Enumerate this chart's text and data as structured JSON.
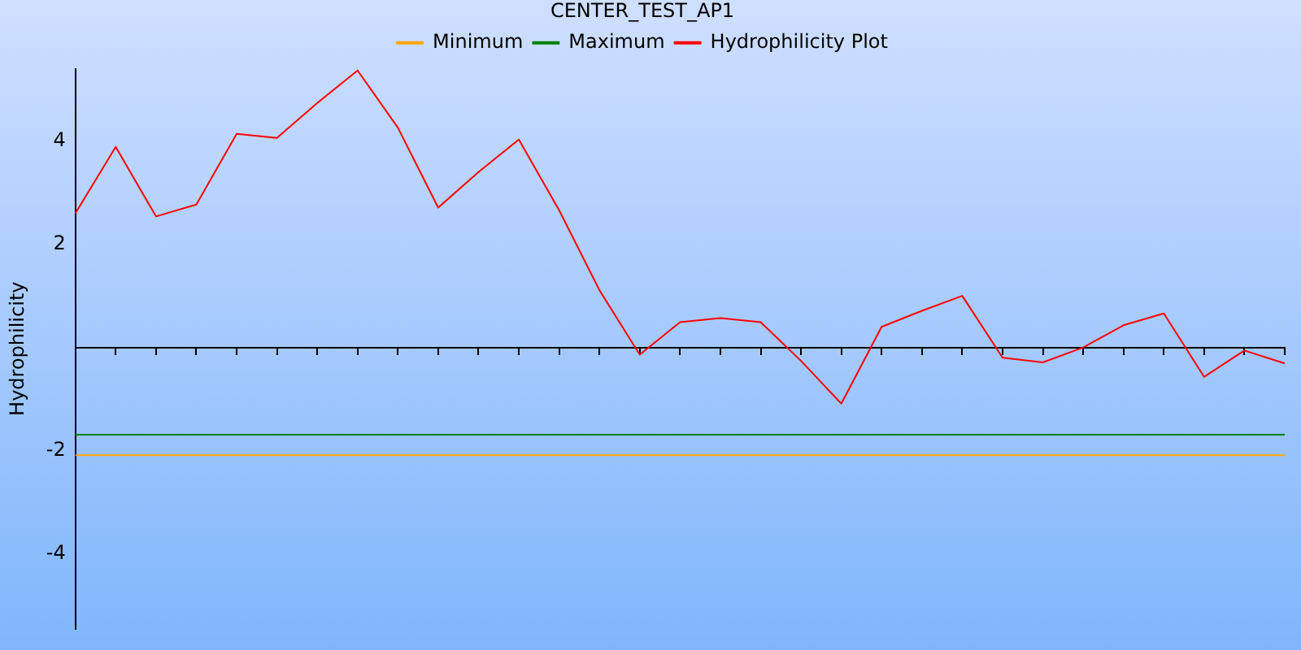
{
  "chart_data": {
    "type": "line",
    "title": "CENTER_TEST_AP1",
    "ylabel": "Hydrophilicity",
    "categories": [
      null,
      null,
      null,
      null,
      null,
      null,
      null,
      null,
      null,
      null,
      null,
      null,
      null,
      null,
      null,
      null,
      null,
      null,
      null,
      null,
      null,
      null,
      null,
      null,
      null,
      null,
      null,
      null,
      null,
      null,
      null
    ],
    "series": [
      {
        "name": "Minimum",
        "color": "#ffa500",
        "values": [
          -2.09,
          -2.09,
          -2.09,
          -2.09,
          -2.09,
          -2.09,
          -2.09,
          -2.09,
          -2.09,
          -2.09,
          -2.09,
          -2.09,
          -2.09,
          -2.09,
          -2.09,
          -2.09,
          -2.09,
          -2.09,
          -2.09,
          -2.09,
          -2.09,
          -2.09,
          -2.09,
          -2.09,
          -2.09,
          -2.09,
          -2.09,
          -2.09,
          -2.09,
          -2.09,
          -2.09
        ]
      },
      {
        "name": "Maximum",
        "color": "#008000",
        "values": [
          -1.69,
          -1.69,
          -1.69,
          -1.69,
          -1.69,
          -1.69,
          -1.69,
          -1.69,
          -1.69,
          -1.69,
          -1.69,
          -1.69,
          -1.69,
          -1.69,
          -1.69,
          -1.69,
          -1.69,
          -1.69,
          -1.69,
          -1.69,
          -1.69,
          -1.69,
          -1.69,
          -1.69,
          -1.69,
          -1.69,
          -1.69,
          -1.69,
          -1.69,
          -1.69,
          -1.69
        ]
      },
      {
        "name": "Hydrophilicity Plot",
        "color": "#ff0000",
        "values": [
          2.6,
          3.89,
          2.54,
          2.77,
          4.14,
          4.06,
          4.74,
          5.37,
          4.26,
          2.71,
          3.4,
          4.03,
          2.66,
          1.11,
          -0.14,
          0.49,
          0.57,
          0.49,
          -0.26,
          -1.09,
          0.4,
          0.71,
          1.0,
          -0.2,
          -0.29,
          0.0,
          0.43,
          0.66,
          -0.57,
          -0.06,
          -0.31
        ]
      }
    ],
    "ylim": [
      -5.45,
      5.4
    ],
    "yticks": [
      -4,
      -2,
      2,
      4
    ],
    "tick_labels": "y",
    "grid": false,
    "legend": "top",
    "marker": "none",
    "line_style": "solid"
  }
}
